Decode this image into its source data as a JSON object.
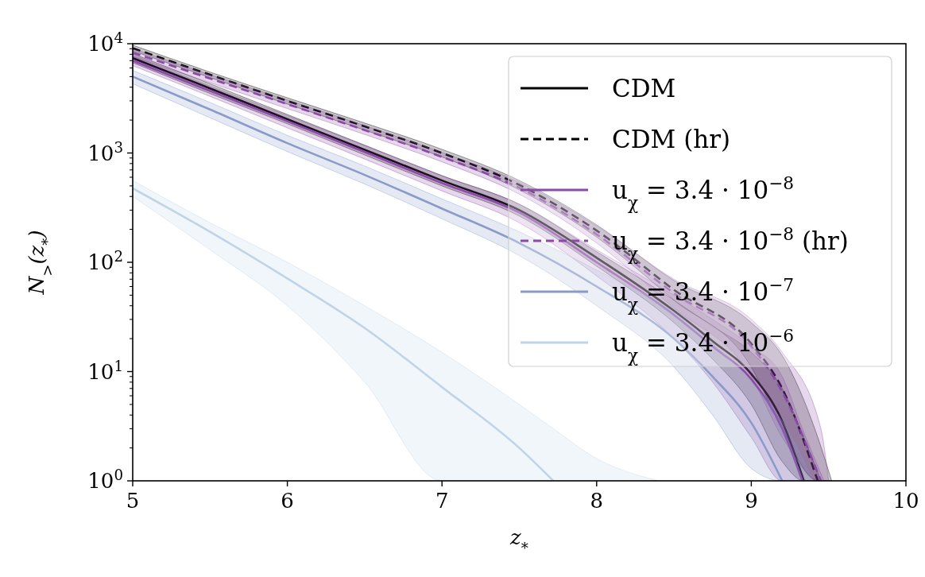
{
  "chart_data": {
    "type": "line",
    "xlabel": "z$_{*}$",
    "ylabel": "N$_{>}$(z$_{*}$)",
    "log": "y",
    "legend": "top right",
    "xlim": [
      5,
      10
    ],
    "xticks": [
      5,
      6,
      7,
      8,
      9,
      10
    ],
    "ylim": [
      1,
      10000
    ],
    "yticks": [
      {
        "value": 1,
        "label": "10$^{0}$"
      },
      {
        "value": 10,
        "label": "10$^{1}$"
      },
      {
        "value": 100,
        "label": "10$^{2}$"
      },
      {
        "value": 1000,
        "label": "10$^{3}$"
      },
      {
        "value": 10000,
        "label": "10$^{4}$"
      }
    ],
    "series": [
      {
        "name": "CDM",
        "color": "#000000",
        "line_style": "solid",
        "x": [
          5,
          5.5,
          6,
          6.5,
          7,
          7.5,
          8,
          8.5,
          8.75,
          9,
          9.2,
          9.34,
          9.45
        ],
        "values": [
          7400,
          3900,
          2040,
          1070,
          560,
          300,
          110,
          36,
          19,
          9.5,
          3.5,
          1,
          null
        ],
        "lower": [
          6700,
          3500,
          1850,
          960,
          500,
          265,
          92,
          28,
          13,
          5,
          1.5,
          1,
          1
        ],
        "upper": [
          8100,
          4300,
          2250,
          1180,
          620,
          340,
          125,
          45,
          26,
          15,
          7,
          2.5,
          1
        ]
      },
      {
        "name": "CDM (hr)",
        "color": "#000000",
        "line_style": "dashed",
        "x": [
          5,
          5.5,
          6,
          6.5,
          7,
          7.5,
          8,
          8.5,
          9,
          9.2,
          9.43,
          9.52
        ],
        "values": [
          9100,
          5200,
          3000,
          1750,
          1000,
          510,
          195,
          56,
          18,
          7,
          1,
          null
        ],
        "lower": [
          8600,
          4900,
          2800,
          1620,
          920,
          460,
          170,
          45,
          11,
          3,
          1,
          1
        ],
        "upper": [
          9700,
          5500,
          3200,
          1880,
          1080,
          560,
          220,
          68,
          28,
          14,
          2.5,
          1
        ]
      },
      {
        "name": "u$_{χ}$ = 3.4 · 10$^{−8}$",
        "color": "#8b4aa8",
        "line_style": "solid",
        "x": [
          5,
          5.5,
          6,
          6.5,
          7,
          7.5,
          8,
          8.5,
          8.75,
          9,
          9.2,
          9.33,
          9.47
        ],
        "values": [
          7000,
          3700,
          1950,
          1020,
          530,
          285,
          100,
          33,
          17,
          8.5,
          3,
          1,
          null
        ],
        "lower": [
          6300,
          3300,
          1700,
          880,
          450,
          230,
          75,
          20,
          8,
          2.5,
          1,
          1,
          1
        ],
        "upper": [
          7800,
          4100,
          2200,
          1170,
          620,
          340,
          130,
          50,
          30,
          17,
          9,
          3,
          1
        ]
      },
      {
        "name": "u$_{χ}$ = 3.4 · 10$^{−8}$ (hr)",
        "color": "#8b4aa8",
        "line_style": "dashed",
        "x": [
          5,
          5.5,
          6,
          6.5,
          7,
          7.5,
          8,
          8.5,
          9,
          9.2,
          9.45,
          9.5
        ],
        "values": [
          8300,
          4800,
          2800,
          1620,
          920,
          480,
          180,
          52,
          17,
          6.5,
          1,
          null
        ],
        "lower": [
          7600,
          4400,
          2550,
          1480,
          830,
          420,
          150,
          38,
          9,
          2.5,
          1,
          1
        ],
        "upper": [
          9000,
          5200,
          3050,
          1780,
          1010,
          540,
          215,
          70,
          30,
          15,
          3,
          1
        ]
      },
      {
        "name": "u$_{χ}$ = 3.4 · 10$^{−7}$",
        "color": "#8a9bc8",
        "line_style": "solid",
        "x": [
          5,
          5.5,
          6,
          6.5,
          7,
          7.5,
          8,
          8.5,
          8.75,
          9,
          9.2,
          9.4
        ],
        "values": [
          5000,
          2500,
          1230,
          630,
          310,
          150,
          60,
          20,
          9,
          3.4,
          1,
          null
        ],
        "lower": [
          4300,
          2100,
          1030,
          520,
          250,
          115,
          40,
          11,
          4,
          1.3,
          1,
          1
        ],
        "upper": [
          5700,
          2900,
          1450,
          760,
          380,
          190,
          85,
          35,
          18,
          8,
          3.5,
          1
        ]
      },
      {
        "name": "u$_{χ}$ = 3.4 · 10$^{−6}$",
        "color": "#c0d4e8",
        "line_style": "solid",
        "x": [
          5,
          5.5,
          6,
          6.5,
          7,
          7.5,
          7.72,
          8,
          8.4
        ],
        "values": [
          475,
          190,
          71,
          25,
          7.2,
          2,
          1,
          null,
          null
        ],
        "lower": [
          400,
          130,
          40,
          8,
          1,
          1,
          1,
          1,
          1
        ],
        "upper": [
          560,
          230,
          100,
          40,
          15,
          5,
          3,
          1.6,
          1
        ]
      }
    ]
  }
}
